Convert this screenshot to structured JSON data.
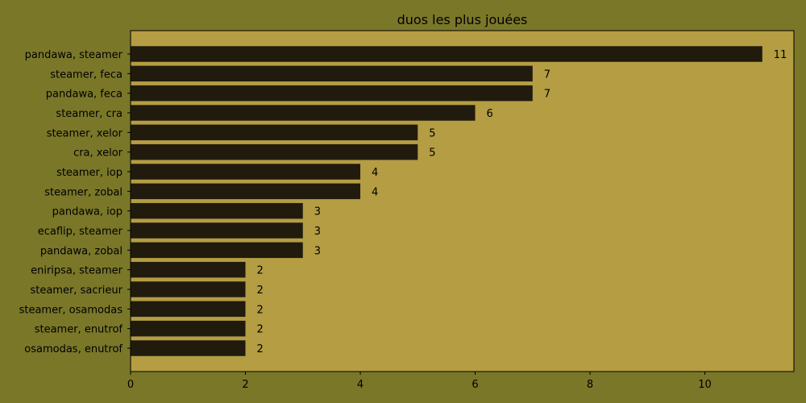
{
  "colors": {
    "figure_bg": "#7a7729",
    "plot_bg": "#b49d42",
    "bar": "#211b0e",
    "text": "#000000"
  },
  "chart_data": {
    "type": "bar",
    "orientation": "horizontal",
    "title": "duos les plus jouées",
    "xlabel": "",
    "ylabel": "",
    "xlim": [
      0,
      11.55
    ],
    "xticks": [
      0,
      2,
      4,
      6,
      8,
      10
    ],
    "grid": false,
    "categories": [
      "pandawa, steamer",
      "steamer, feca",
      "pandawa, feca",
      "steamer, cra",
      "steamer, xelor",
      "cra, xelor",
      "steamer, iop",
      "steamer, zobal",
      "pandawa, iop",
      "ecaflip, steamer",
      "pandawa, zobal",
      "eniripsa, steamer",
      "steamer, sacrieur",
      "steamer, osamodas",
      "steamer, enutrof",
      "osamodas, enutrof"
    ],
    "values": [
      11,
      7,
      7,
      6,
      5,
      5,
      4,
      4,
      3,
      3,
      3,
      2,
      2,
      2,
      2,
      2
    ],
    "data_labels": [
      "11",
      "7",
      "7",
      "6",
      "5",
      "5",
      "4",
      "4",
      "3",
      "3",
      "3",
      "2",
      "2",
      "2",
      "2",
      "2"
    ]
  }
}
